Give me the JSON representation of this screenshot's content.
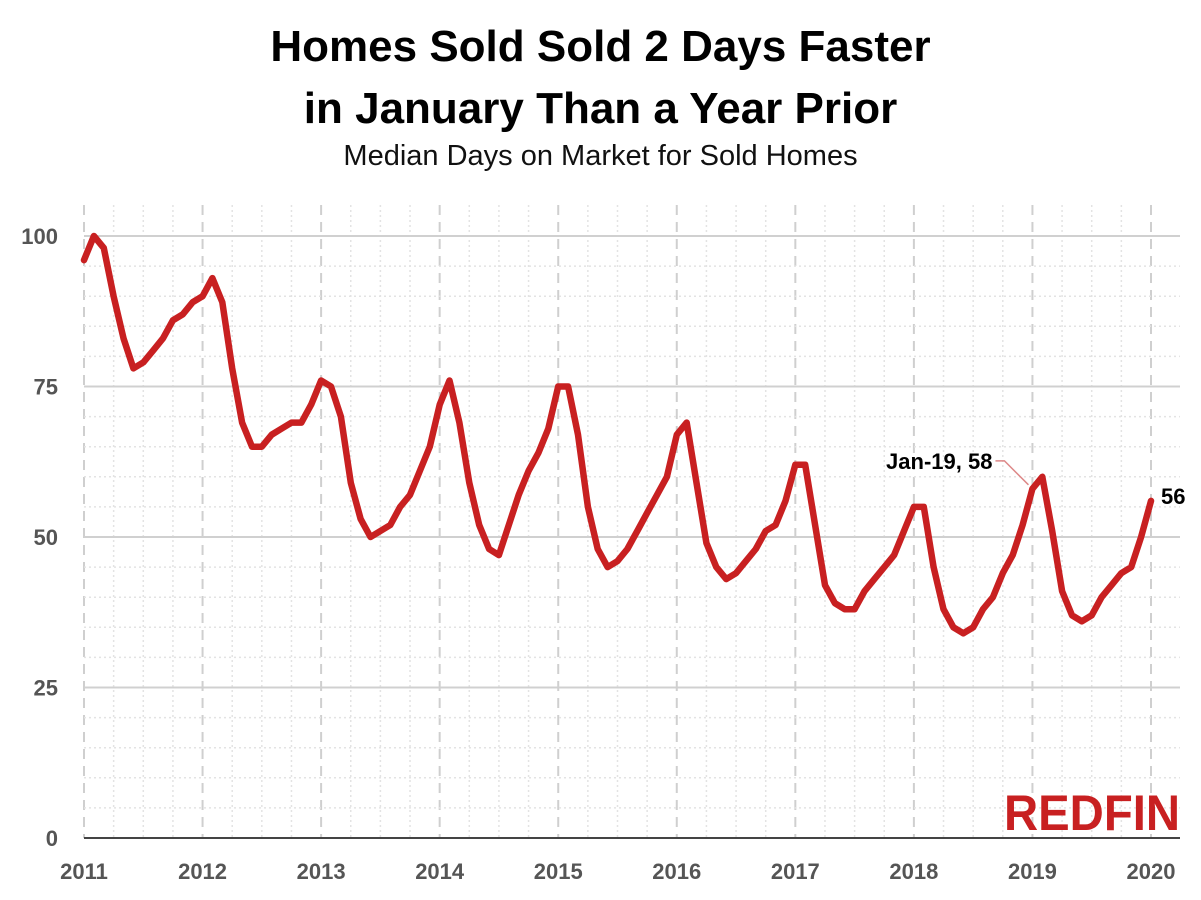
{
  "title_line1": "Homes Sold Sold 2 Days Faster",
  "title_line2": "in January Than a Year Prior",
  "subtitle": "Median Days on Market for Sold Homes",
  "brand": "Redfin",
  "brand_display": "REDFIN",
  "colors": {
    "line": "#c82021",
    "grid": "#d0d0d0",
    "tick": "#555555"
  },
  "chart_data": {
    "type": "line",
    "title": "Homes Sold Sold 2 Days Faster in January Than a Year Prior",
    "subtitle": "Median Days on Market for Sold Homes",
    "xlabel": "",
    "ylabel": "",
    "ylim": [
      0,
      100
    ],
    "yticks": [
      0,
      25,
      50,
      75,
      100
    ],
    "xticks": [
      "2011",
      "2012",
      "2013",
      "2014",
      "2015",
      "2016",
      "2017",
      "2018",
      "2019",
      "2020"
    ],
    "xrange": [
      "2011-01",
      "2020-01"
    ],
    "grid": true,
    "series": [
      {
        "color": "#c82021",
        "x": [
          "2011-01",
          "2011-02",
          "2011-03",
          "2011-04",
          "2011-05",
          "2011-06",
          "2011-07",
          "2011-08",
          "2011-09",
          "2011-10",
          "2011-11",
          "2011-12",
          "2012-01",
          "2012-02",
          "2012-03",
          "2012-04",
          "2012-05",
          "2012-06",
          "2012-07",
          "2012-08",
          "2012-09",
          "2012-10",
          "2012-11",
          "2012-12",
          "2013-01",
          "2013-02",
          "2013-03",
          "2013-04",
          "2013-05",
          "2013-06",
          "2013-07",
          "2013-08",
          "2013-09",
          "2013-10",
          "2013-11",
          "2013-12",
          "2014-01",
          "2014-02",
          "2014-03",
          "2014-04",
          "2014-05",
          "2014-06",
          "2014-07",
          "2014-08",
          "2014-09",
          "2014-10",
          "2014-11",
          "2014-12",
          "2015-01",
          "2015-02",
          "2015-03",
          "2015-04",
          "2015-05",
          "2015-06",
          "2015-07",
          "2015-08",
          "2015-09",
          "2015-10",
          "2015-11",
          "2015-12",
          "2016-01",
          "2016-02",
          "2016-03",
          "2016-04",
          "2016-05",
          "2016-06",
          "2016-07",
          "2016-08",
          "2016-09",
          "2016-10",
          "2016-11",
          "2016-12",
          "2017-01",
          "2017-02",
          "2017-03",
          "2017-04",
          "2017-05",
          "2017-06",
          "2017-07",
          "2017-08",
          "2017-09",
          "2017-10",
          "2017-11",
          "2017-12",
          "2018-01",
          "2018-02",
          "2018-03",
          "2018-04",
          "2018-05",
          "2018-06",
          "2018-07",
          "2018-08",
          "2018-09",
          "2018-10",
          "2018-11",
          "2018-12",
          "2019-01",
          "2019-02",
          "2019-03",
          "2019-04",
          "2019-05",
          "2019-06",
          "2019-07",
          "2019-08",
          "2019-09",
          "2019-10",
          "2019-11",
          "2019-12",
          "2020-01"
        ],
        "values": [
          96,
          100,
          98,
          90,
          83,
          78,
          79,
          81,
          83,
          86,
          87,
          89,
          90,
          93,
          89,
          78,
          69,
          65,
          65,
          67,
          68,
          69,
          69,
          72,
          76,
          75,
          70,
          59,
          53,
          50,
          51,
          52,
          55,
          57,
          61,
          65,
          72,
          76,
          69,
          59,
          52,
          48,
          47,
          52,
          57,
          61,
          64,
          68,
          75,
          75,
          67,
          55,
          48,
          45,
          46,
          48,
          51,
          54,
          57,
          60,
          67,
          69,
          59,
          49,
          45,
          43,
          44,
          46,
          48,
          51,
          52,
          56,
          62,
          62,
          52,
          42,
          39,
          38,
          38,
          41,
          43,
          45,
          47,
          51,
          55,
          55,
          45,
          38,
          35,
          34,
          35,
          38,
          40,
          44,
          47,
          52,
          58,
          60,
          51,
          41,
          37,
          36,
          37,
          40,
          42,
          44,
          45,
          50,
          56
        ]
      }
    ],
    "annotations": [
      {
        "label": "Jan-19, 58",
        "x": "2019-01",
        "y": 58
      },
      {
        "label": "56",
        "x": "2020-01",
        "y": 56
      }
    ]
  }
}
